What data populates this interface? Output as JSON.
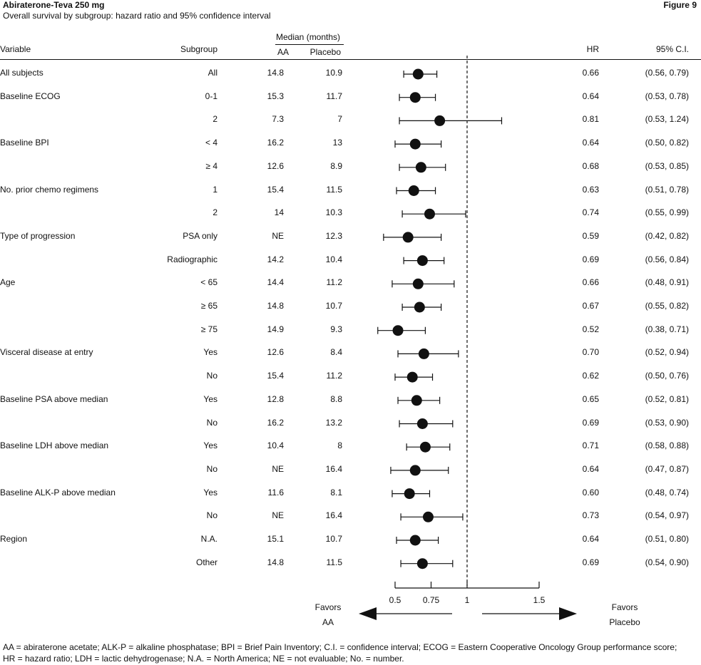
{
  "header": {
    "title": "Abiraterone-Teva 250 mg",
    "figure_label": "Figure 9",
    "subtitle": "Overall survival by subgroup: hazard ratio and 95% confidence interval"
  },
  "columns": {
    "variable": "Variable",
    "subgroup": "Subgroup",
    "median_group": "Median (months)",
    "aa": "AA",
    "placebo": "Placebo",
    "hr": "HR",
    "ci": "95%  C.I."
  },
  "rows": [
    {
      "variable": "All subjects",
      "subgroup": "All",
      "aa": "14.8",
      "placebo": "10.9",
      "hr": "0.66",
      "ci": "(0.56,  0.79)"
    },
    {
      "variable": "Baseline ECOG",
      "subgroup": "0-1",
      "aa": "15.3",
      "placebo": "11.7",
      "hr": "0.64",
      "ci": "(0.53,  0.78)"
    },
    {
      "variable": "",
      "subgroup": "2",
      "aa": "7.3",
      "placebo": "7",
      "hr": "0.81",
      "ci": "(0.53,  1.24)"
    },
    {
      "variable": "Baseline BPI",
      "subgroup": "< 4",
      "aa": "16.2",
      "placebo": "13",
      "hr": "0.64",
      "ci": "(0.50,  0.82)"
    },
    {
      "variable": "",
      "subgroup": "≥ 4",
      "aa": "12.6",
      "placebo": "8.9",
      "hr": "0.68",
      "ci": "(0.53,  0.85)"
    },
    {
      "variable": "No. prior chemo regimens",
      "subgroup": "1",
      "aa": "15.4",
      "placebo": "11.5",
      "hr": "0.63",
      "ci": "(0.51, 0.78)"
    },
    {
      "variable": "",
      "subgroup": "2",
      "aa": "14",
      "placebo": "10.3",
      "hr": "0.74",
      "ci": "(0.55, 0.99)"
    },
    {
      "variable": "Type of progression",
      "subgroup": "PSA only",
      "aa": "NE",
      "placebo": "12.3",
      "hr": "0.59",
      "ci": "(0.42,  0.82)"
    },
    {
      "variable": "",
      "subgroup": "Radiographic",
      "aa": "14.2",
      "placebo": "10.4",
      "hr": "0.69",
      "ci": "(0.56,  0.84)"
    },
    {
      "variable": "Age",
      "subgroup": "< 65",
      "aa": "14.4",
      "placebo": "11.2",
      "hr": "0.66",
      "ci": "(0.48,  0.91)"
    },
    {
      "variable": "",
      "subgroup": "≥ 65",
      "aa": "14.8",
      "placebo": "10.7",
      "hr": "0.67",
      "ci": "(0.55,  0.82)"
    },
    {
      "variable": "",
      "subgroup": "≥ 75",
      "aa": "14.9",
      "placebo": "9.3",
      "hr": "0.52",
      "ci": "(0.38,  0.71)"
    },
    {
      "variable": "Visceral disease at entry",
      "subgroup": "Yes",
      "aa": "12.6",
      "placebo": "8.4",
      "hr": "0.70",
      "ci": "(0.52,  0.94)"
    },
    {
      "variable": "",
      "subgroup": "No",
      "aa": "15.4",
      "placebo": "11.2",
      "hr": "0.62",
      "ci": "(0.50,  0.76)"
    },
    {
      "variable": "Baseline PSA above median",
      "subgroup": "Yes",
      "aa": "12.8",
      "placebo": "8.8",
      "hr": "0.65",
      "ci": "(0.52,  0.81)"
    },
    {
      "variable": "",
      "subgroup": "No",
      "aa": "16.2",
      "placebo": "13.2",
      "hr": "0.69",
      "ci": "(0.53,  0.90)"
    },
    {
      "variable": "Baseline LDH above median",
      "subgroup": "Yes",
      "aa": "10.4",
      "placebo": "8",
      "hr": "0.71",
      "ci": "(0.58,  0.88)"
    },
    {
      "variable": "",
      "subgroup": "No",
      "aa": "NE",
      "placebo": "16.4",
      "hr": "0.64",
      "ci": "(0.47,  0.87)"
    },
    {
      "variable": "Baseline ALK-P above median",
      "subgroup": "Yes",
      "aa": "11.6",
      "placebo": "8.1",
      "hr": "0.60",
      "ci": "(0.48,  0.74)"
    },
    {
      "variable": "",
      "subgroup": "No",
      "aa": "NE",
      "placebo": "16.4",
      "hr": "0.73",
      "ci": "(0.54,  0.97)"
    },
    {
      "variable": "Region",
      "subgroup": "N.A.",
      "aa": "15.1",
      "placebo": "10.7",
      "hr": "0.64",
      "ci": "(0.51,  0.80)"
    },
    {
      "variable": "",
      "subgroup": "Other",
      "aa": "14.8",
      "placebo": "11.5",
      "hr": "0.69",
      "ci": "(0.54,  0.90)"
    }
  ],
  "chart_data": {
    "type": "forest",
    "title": "Overall survival by subgroup: hazard ratio and 95% confidence interval",
    "xlim": [
      0.5,
      1.5
    ],
    "x_ticks": [
      0.5,
      0.75,
      1,
      1.5
    ],
    "x_tick_labels": [
      "0.5",
      "0.75",
      "1",
      "1.5"
    ],
    "reference_line": 1,
    "points": [
      {
        "hr": 0.66,
        "lo": 0.56,
        "hi": 0.79
      },
      {
        "hr": 0.64,
        "lo": 0.53,
        "hi": 0.78
      },
      {
        "hr": 0.81,
        "lo": 0.53,
        "hi": 1.24
      },
      {
        "hr": 0.64,
        "lo": 0.5,
        "hi": 0.82
      },
      {
        "hr": 0.68,
        "lo": 0.53,
        "hi": 0.85
      },
      {
        "hr": 0.63,
        "lo": 0.51,
        "hi": 0.78
      },
      {
        "hr": 0.74,
        "lo": 0.55,
        "hi": 0.99
      },
      {
        "hr": 0.59,
        "lo": 0.42,
        "hi": 0.82
      },
      {
        "hr": 0.69,
        "lo": 0.56,
        "hi": 0.84
      },
      {
        "hr": 0.66,
        "lo": 0.48,
        "hi": 0.91
      },
      {
        "hr": 0.67,
        "lo": 0.55,
        "hi": 0.82
      },
      {
        "hr": 0.52,
        "lo": 0.38,
        "hi": 0.71
      },
      {
        "hr": 0.7,
        "lo": 0.52,
        "hi": 0.94
      },
      {
        "hr": 0.62,
        "lo": 0.5,
        "hi": 0.76
      },
      {
        "hr": 0.65,
        "lo": 0.52,
        "hi": 0.81
      },
      {
        "hr": 0.69,
        "lo": 0.53,
        "hi": 0.9
      },
      {
        "hr": 0.71,
        "lo": 0.58,
        "hi": 0.88
      },
      {
        "hr": 0.64,
        "lo": 0.47,
        "hi": 0.87
      },
      {
        "hr": 0.6,
        "lo": 0.48,
        "hi": 0.74
      },
      {
        "hr": 0.73,
        "lo": 0.54,
        "hi": 0.97
      },
      {
        "hr": 0.64,
        "lo": 0.51,
        "hi": 0.8
      },
      {
        "hr": 0.69,
        "lo": 0.54,
        "hi": 0.9
      }
    ]
  },
  "favors": {
    "left_line1": "Favors",
    "left_line2": "AA",
    "right_line1": "Favors",
    "right_line2": "Placebo"
  },
  "footnotes": {
    "line1": "AA = abiraterone acetate; ALK-P = alkaline phosphatase; BPI = Brief Pain Inventory; C.I. = confidence interval; ECOG = Eastern Cooperative Oncology Group performance score;",
    "line2": "HR = hazard ratio; LDH = lactic dehydrogenase; N.A. = North America; NE = not evaluable; No. = number."
  }
}
